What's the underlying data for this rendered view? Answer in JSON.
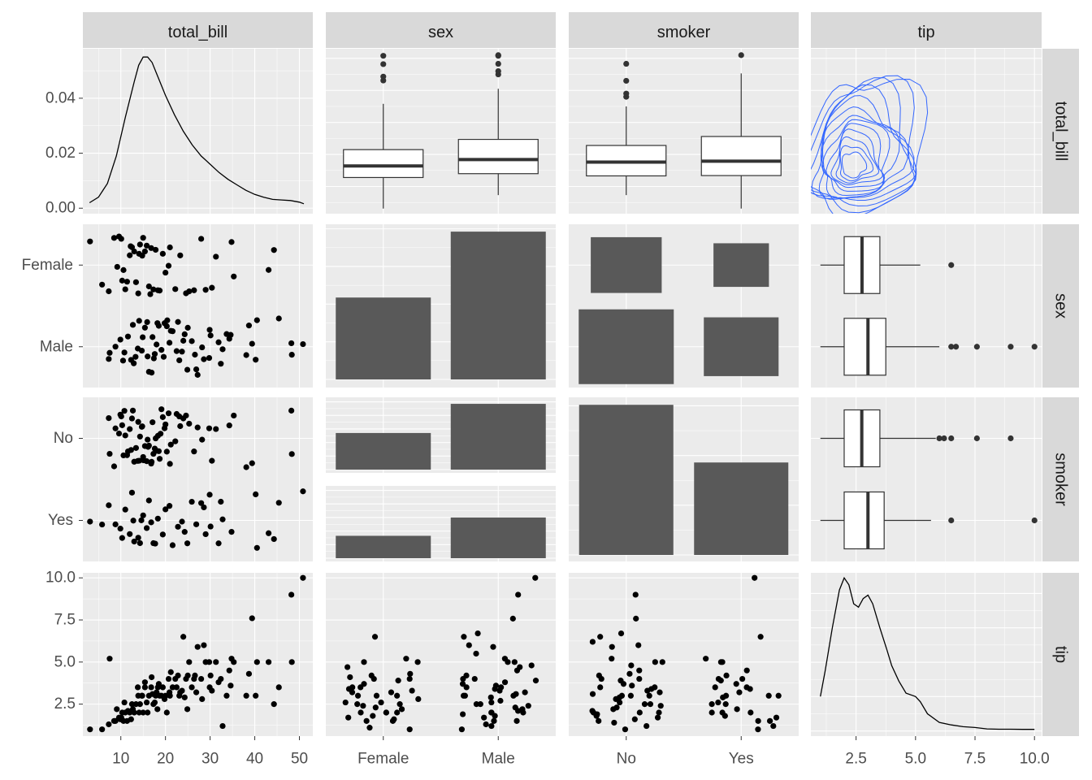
{
  "chart_data": {
    "type": "pairs-matrix",
    "variables": [
      "total_bill",
      "sex",
      "smoker",
      "tip"
    ],
    "column_strips": [
      "total_bill",
      "sex",
      "smoker",
      "tip"
    ],
    "row_strips": [
      "total_bill",
      "sex",
      "smoker",
      "tip"
    ],
    "axes": {
      "total_bill": {
        "range": [
          1.5,
          53
        ],
        "ticks": [
          10,
          20,
          30,
          40,
          50
        ],
        "tick_labels": [
          "10",
          "20",
          "30",
          "40",
          "50"
        ]
      },
      "tip": {
        "range": [
          0.6,
          10.3
        ],
        "ticks": [
          2.5,
          5.0,
          7.5,
          10.0
        ],
        "tick_labels": [
          "2.5",
          "5.0",
          "7.5",
          "10.0"
        ]
      },
      "density_y": {
        "range": [
          -0.002,
          0.058
        ],
        "ticks": [
          0.0,
          0.02,
          0.04
        ],
        "tick_labels": [
          "0.00",
          "0.02",
          "0.04"
        ]
      },
      "sex": {
        "levels": [
          "Female",
          "Male"
        ]
      },
      "smoker": {
        "levels": [
          "No",
          "Yes"
        ]
      }
    },
    "colors": {
      "panel_bg": "#ebebeb",
      "grid": "#ffffff",
      "strip_bg": "#d9d9d9",
      "bar": "#595959",
      "point": "#000000",
      "contour": "#3366ff",
      "tick_text": "#4d4d4d",
      "strip_text": "#1a1a1a"
    },
    "total_bill_density": {
      "x": [
        3,
        5,
        7,
        9,
        11,
        13,
        14,
        15,
        16,
        17,
        18,
        20,
        22,
        24,
        26,
        28,
        30,
        32,
        34,
        36,
        38,
        40,
        42,
        44,
        46,
        48,
        50,
        51
      ],
      "y": [
        0.002,
        0.004,
        0.009,
        0.019,
        0.033,
        0.046,
        0.052,
        0.055,
        0.055,
        0.053,
        0.049,
        0.041,
        0.034,
        0.028,
        0.023,
        0.019,
        0.016,
        0.013,
        0.0105,
        0.0085,
        0.0065,
        0.005,
        0.004,
        0.0032,
        0.003,
        0.0028,
        0.0022,
        0.0016
      ]
    },
    "tip_density": {
      "x": [
        1.0,
        1.2,
        1.5,
        1.8,
        2.0,
        2.2,
        2.4,
        2.6,
        2.8,
        3.0,
        3.2,
        3.5,
        3.8,
        4.0,
        4.3,
        4.6,
        5.0,
        5.2,
        5.5,
        6.0,
        6.5,
        7.0,
        7.5,
        8.0,
        8.5,
        9.0,
        9.5,
        10.0
      ],
      "y": [
        0.2,
        0.35,
        0.6,
        0.82,
        0.89,
        0.85,
        0.74,
        0.72,
        0.77,
        0.79,
        0.74,
        0.6,
        0.47,
        0.38,
        0.29,
        0.22,
        0.2,
        0.17,
        0.1,
        0.05,
        0.035,
        0.025,
        0.02,
        0.012,
        0.01,
        0.01,
        0.009,
        0.009
      ],
      "ymax": 0.92
    },
    "total_bill_by_sex_box": [
      {
        "level": "Female",
        "lower_whisker": 3.1,
        "q1": 12.8,
        "median": 16.4,
        "q3": 21.5,
        "upper_whisker": 35.8,
        "outliers": [
          43.1,
          44.3,
          48.2,
          50.8
        ]
      },
      {
        "level": "Male",
        "lower_whisker": 7.3,
        "q1": 14.0,
        "median": 18.4,
        "q3": 24.7,
        "upper_whisker": 40.5,
        "outliers": [
          45.0,
          46.0,
          48.3,
          50.8,
          51.0
        ]
      }
    ],
    "total_bill_by_smoker_box": [
      {
        "level": "No",
        "lower_whisker": 7.3,
        "q1": 13.3,
        "median": 17.6,
        "q3": 22.8,
        "upper_whisker": 35.0,
        "outliers": [
          38.0,
          39.0,
          43.0,
          48.3
        ]
      },
      {
        "level": "Yes",
        "lower_whisker": 3.1,
        "q1": 13.4,
        "median": 17.9,
        "q3": 25.6,
        "upper_whisker": 45.3,
        "outliers": [
          51.0
        ]
      }
    ],
    "tip_by_sex_box": [
      {
        "level": "Female",
        "lower_whisker": 1.0,
        "q1": 2.0,
        "median": 2.75,
        "q3": 3.5,
        "upper_whisker": 5.2,
        "outliers": [
          6.5
        ]
      },
      {
        "level": "Male",
        "lower_whisker": 1.0,
        "q1": 2.0,
        "median": 3.0,
        "q3": 3.75,
        "upper_whisker": 6.0,
        "outliers": [
          6.5,
          6.7,
          7.58,
          9.0,
          10.0
        ]
      }
    ],
    "tip_by_smoker_box": [
      {
        "level": "No",
        "lower_whisker": 1.0,
        "q1": 2.0,
        "median": 2.74,
        "q3": 3.5,
        "upper_whisker": 5.85,
        "outliers": [
          6.0,
          6.2,
          6.5,
          7.58,
          9.0
        ]
      },
      {
        "level": "Yes",
        "lower_whisker": 1.0,
        "q1": 2.0,
        "median": 3.0,
        "q3": 3.68,
        "upper_whisker": 5.65,
        "outliers": [
          6.5,
          10.0
        ]
      }
    ],
    "counts_sex": [
      {
        "level": "Female",
        "count": 87
      },
      {
        "level": "Male",
        "count": 157
      }
    ],
    "counts_sex_by_smoker": [
      {
        "sex": "Female",
        "smoker": "No",
        "count": 54
      },
      {
        "sex": "Male",
        "smoker": "No",
        "count": 97
      },
      {
        "sex": "Female",
        "smoker": "Yes",
        "count": 33
      },
      {
        "sex": "Male",
        "smoker": "Yes",
        "count": 60
      }
    ],
    "counts_smoker": [
      {
        "level": "No",
        "count": 151
      },
      {
        "level": "Yes",
        "count": 93
      }
    ],
    "tip_vs_total_bill": {
      "x": [
        3.1,
        5.8,
        7.3,
        7.5,
        8.5,
        9.6,
        10.1,
        10.3,
        10.6,
        11.0,
        11.4,
        12.0,
        12.5,
        13.0,
        13.4,
        13.9,
        14.3,
        14.8,
        15.0,
        15.4,
        15.8,
        16.3,
        16.8,
        17.3,
        17.8,
        18.3,
        18.7,
        19.4,
        20.0,
        20.7,
        21.0,
        21.6,
        22.2,
        22.8,
        23.3,
        24.0,
        24.6,
        25.3,
        25.9,
        26.4,
        27.2,
        28.0,
        28.6,
        29.0,
        29.9,
        30.4,
        31.3,
        32.4,
        32.8,
        34.3,
        34.8,
        35.3,
        38.1,
        39.4,
        40.2,
        43.1,
        44.3,
        48.2,
        48.3,
        50.8,
        8.8,
        9.9,
        11.6,
        12.7,
        13.8,
        14.7,
        16.0,
        16.9,
        17.6,
        18.0,
        18.5,
        19.8,
        20.3,
        20.9,
        22.5,
        23.7,
        24.3,
        25.0,
        26.9,
        28.2,
        30.1,
        31.9,
        34.6,
        38.7,
        45.4,
        9.1,
        10.8,
        12.3,
        14.1,
        15.4,
        17.1,
        18.2,
        19.1,
        21.2,
        23.1,
        24.9,
        26.6,
        29.8,
        33.7,
        40.5
      ],
      "y": [
        1.0,
        1.0,
        1.3,
        5.2,
        1.5,
        1.7,
        1.7,
        2.0,
        1.5,
        2.0,
        1.5,
        2.0,
        2.5,
        2.0,
        2.5,
        3.0,
        2.5,
        3.0,
        2.0,
        3.5,
        2.6,
        3.0,
        3.5,
        2.5,
        3.0,
        3.5,
        3.0,
        3.5,
        3.0,
        4.0,
        3.0,
        3.5,
        4.0,
        4.2,
        3.2,
        6.5,
        4.0,
        5.0,
        3.5,
        4.0,
        5.9,
        4.0,
        6.0,
        5.0,
        3.5,
        3.3,
        5.0,
        4.0,
        1.2,
        4.5,
        5.2,
        5.0,
        3.0,
        7.6,
        3.0,
        5.0,
        2.5,
        9.0,
        5.0,
        10.0,
        1.5,
        1.6,
        2.1,
        2.2,
        3.5,
        3.0,
        2.0,
        4.1,
        2.6,
        3.2,
        3.7,
        2.8,
        2.0,
        3.2,
        3.5,
        3.3,
        2.9,
        4.2,
        3.2,
        2.8,
        4.2,
        3.8,
        3.6,
        4.3,
        3.5,
        2.2,
        2.6,
        1.6,
        2.0,
        3.8,
        3.1,
        2.2,
        3.0,
        4.4,
        3.0,
        2.2,
        4.2,
        5.0,
        3.0,
        5.0
      ]
    },
    "tip_by_sex": {
      "Female": [
        1.0,
        1.1,
        1.5,
        1.7,
        1.8,
        2.0,
        2.0,
        2.2,
        2.5,
        2.5,
        2.6,
        3.0,
        3.0,
        3.0,
        3.2,
        3.3,
        3.5,
        3.5,
        3.7,
        4.0,
        4.0,
        4.2,
        4.3,
        4.7,
        5.0,
        5.0,
        5.2,
        6.5,
        2.0,
        2.8,
        3.2,
        1.5,
        2.3,
        2.0,
        3.4,
        1.6,
        4.1,
        2.6,
        2.4,
        3.9
      ],
      "Male": [
        1.0,
        1.2,
        1.5,
        1.5,
        1.8,
        2.0,
        2.0,
        2.0,
        2.2,
        2.5,
        2.5,
        2.7,
        3.0,
        3.0,
        3.0,
        3.2,
        3.3,
        3.5,
        3.5,
        3.6,
        3.8,
        4.0,
        4.0,
        4.2,
        4.5,
        4.7,
        5.0,
        5.0,
        5.2,
        5.5,
        5.9,
        6.0,
        6.5,
        6.7,
        7.58,
        9.0,
        10.0,
        2.6,
        1.7,
        3.4,
        2.1,
        4.8,
        3.9,
        1.9,
        2.3,
        3.1,
        2.9,
        2.4,
        3.7,
        1.3
      ]
    },
    "tip_by_smoker": {
      "No": [
        1.0,
        1.2,
        1.5,
        1.7,
        1.8,
        2.0,
        2.0,
        2.0,
        2.2,
        2.5,
        2.5,
        2.6,
        3.0,
        3.0,
        3.0,
        3.2,
        3.3,
        3.5,
        3.5,
        3.7,
        4.0,
        4.0,
        4.2,
        4.3,
        4.5,
        5.0,
        5.0,
        5.2,
        5.9,
        6.0,
        6.2,
        6.5,
        6.7,
        7.58,
        9.0,
        2.3,
        1.6,
        2.8,
        3.9,
        2.9,
        3.1,
        2.4,
        4.8,
        1.9,
        3.6,
        2.1,
        3.4,
        1.4
      ],
      "Yes": [
        1.0,
        1.2,
        1.5,
        1.5,
        2.0,
        2.0,
        2.0,
        2.2,
        2.5,
        2.5,
        3.0,
        3.0,
        3.0,
        3.2,
        3.5,
        3.5,
        3.7,
        4.0,
        4.0,
        4.2,
        4.5,
        5.0,
        5.0,
        5.2,
        6.5,
        10.0,
        1.8,
        2.6,
        3.4,
        2.9,
        1.7,
        3.9
      ]
    },
    "total_bill_by_sex": {
      "Female": [
        3.1,
        5.8,
        7.3,
        8.5,
        9.6,
        10.1,
        10.3,
        10.6,
        11.0,
        11.4,
        12.0,
        12.5,
        13.0,
        13.4,
        13.9,
        14.3,
        14.8,
        15.0,
        15.4,
        15.8,
        16.3,
        16.8,
        17.3,
        17.8,
        18.3,
        18.7,
        19.4,
        20.0,
        20.7,
        21.0,
        22.2,
        23.3,
        24.6,
        25.3,
        26.4,
        28.0,
        29.0,
        30.4,
        31.3,
        34.8,
        35.3,
        43.1,
        44.3,
        12.2,
        16.6,
        14.1,
        9.2
      ],
      "Male": [
        7.3,
        7.5,
        8.8,
        9.9,
        10.8,
        11.6,
        12.3,
        12.7,
        13.8,
        14.1,
        14.7,
        15.4,
        16.0,
        16.9,
        17.1,
        17.6,
        18.0,
        18.2,
        18.5,
        19.1,
        19.8,
        20.3,
        20.9,
        21.2,
        21.6,
        22.5,
        22.8,
        23.1,
        23.7,
        24.0,
        24.3,
        24.9,
        25.0,
        25.9,
        26.6,
        26.9,
        27.2,
        28.2,
        28.6,
        29.8,
        29.9,
        30.1,
        31.9,
        32.4,
        32.8,
        33.7,
        34.3,
        34.6,
        38.1,
        38.7,
        39.4,
        40.2,
        40.5,
        45.4,
        48.2,
        48.3,
        50.8,
        13.3,
        15.9,
        17.4,
        20.4,
        12.9,
        10.5,
        16.3,
        19.6,
        14.9
      ]
    },
    "total_bill_by_smoker": {
      "No": [
        7.3,
        7.5,
        8.5,
        8.8,
        9.6,
        9.9,
        10.1,
        10.3,
        10.6,
        10.8,
        11.0,
        11.4,
        11.6,
        12.0,
        12.3,
        12.5,
        12.7,
        13.0,
        13.4,
        13.8,
        13.9,
        14.1,
        14.3,
        14.7,
        14.8,
        15.0,
        15.4,
        15.8,
        16.0,
        16.3,
        16.8,
        16.9,
        17.1,
        17.3,
        17.6,
        17.8,
        18.0,
        18.3,
        18.5,
        18.7,
        19.1,
        19.4,
        19.8,
        20.0,
        20.3,
        20.7,
        21.0,
        21.2,
        22.2,
        22.5,
        23.1,
        23.3,
        24.0,
        24.6,
        25.3,
        26.4,
        27.2,
        28.2,
        29.8,
        30.4,
        31.3,
        34.3,
        35.3,
        38.1,
        39.4,
        48.2,
        48.3,
        15.1,
        16.1,
        18.9
      ],
      "Yes": [
        3.1,
        5.8,
        7.3,
        8.8,
        9.9,
        10.3,
        11.0,
        12.0,
        12.5,
        13.0,
        13.9,
        14.3,
        15.0,
        15.8,
        16.3,
        16.8,
        17.3,
        18.3,
        19.4,
        20.0,
        20.9,
        21.6,
        22.8,
        23.7,
        24.3,
        24.9,
        25.9,
        26.9,
        28.0,
        28.6,
        29.0,
        29.9,
        30.1,
        31.9,
        32.4,
        32.8,
        34.8,
        40.2,
        40.5,
        43.1,
        44.3,
        45.4,
        50.8,
        14.6,
        17.7,
        12.8
      ]
    }
  }
}
